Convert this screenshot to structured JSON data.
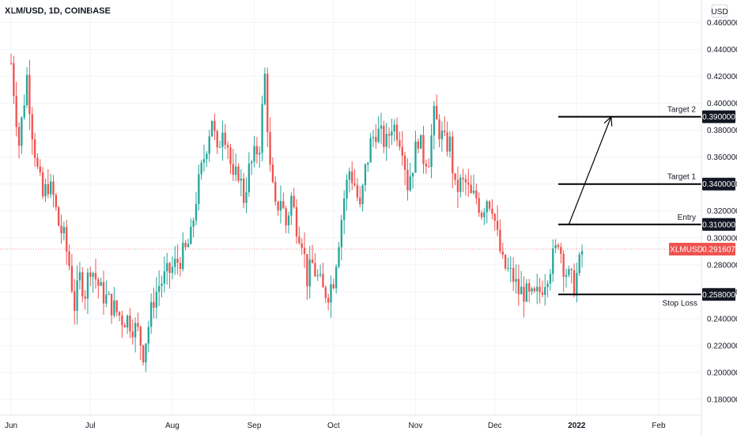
{
  "header": {
    "symbol_line": "XLM/USD, 1D, COINBASE"
  },
  "currency_badge": "USD",
  "colors": {
    "up": "#26a69a",
    "down": "#ef5350",
    "grid": "#f0f3fa",
    "text": "#131722",
    "level_line": "#000000",
    "last_price_bg": "#ef5350"
  },
  "chart_data": {
    "type": "candlestick",
    "title": "XLM/USD, 1D, COINBASE",
    "ylim": [
      0.17,
      0.465
    ],
    "y_ticks": [
      "0.460000",
      "0.440000",
      "0.420000",
      "0.400000",
      "0.380000",
      "0.360000",
      "0.340000",
      "0.320000",
      "0.300000",
      "0.280000",
      "0.260000",
      "0.240000",
      "0.220000",
      "0.200000",
      "0.180000"
    ],
    "x_ticks": [
      "Jun",
      "Jul",
      "Aug",
      "Sep",
      "Oct",
      "Nov",
      "Dec",
      "2022",
      "Feb"
    ],
    "x_range_days": [
      0,
      250
    ],
    "x_tick_days": [
      0,
      30,
      61,
      92,
      122,
      153,
      183,
      214,
      245
    ],
    "last_price": {
      "symbol": "XLMUSD",
      "value": "0.291607",
      "y": 0.291607
    },
    "levels": [
      {
        "name": "Target 2",
        "label": "0.390000",
        "y": 0.39
      },
      {
        "name": "Target 1",
        "label": "0.340000",
        "y": 0.34
      },
      {
        "name": "Entry",
        "label": "0.310000",
        "y": 0.31
      },
      {
        "name": "Stop Loss",
        "label": "0.258000",
        "y": 0.258
      }
    ],
    "level_x_start_day": 207,
    "arrow": {
      "from": {
        "day": 211,
        "y": 0.31
      },
      "to": {
        "day": 227,
        "y": 0.39
      }
    },
    "anchors": [
      [
        0,
        0.43
      ],
      [
        3,
        0.37
      ],
      [
        6,
        0.42
      ],
      [
        8,
        0.38
      ],
      [
        10,
        0.35
      ],
      [
        12,
        0.33
      ],
      [
        14,
        0.34
      ],
      [
        16,
        0.33
      ],
      [
        18,
        0.31
      ],
      [
        20,
        0.3
      ],
      [
        22,
        0.28
      ],
      [
        24,
        0.25
      ],
      [
        26,
        0.27
      ],
      [
        28,
        0.26
      ],
      [
        30,
        0.28
      ],
      [
        32,
        0.27
      ],
      [
        34,
        0.26
      ],
      [
        36,
        0.255
      ],
      [
        38,
        0.25
      ],
      [
        40,
        0.245
      ],
      [
        42,
        0.24
      ],
      [
        44,
        0.24
      ],
      [
        46,
        0.235
      ],
      [
        48,
        0.23
      ],
      [
        50,
        0.215
      ],
      [
        52,
        0.235
      ],
      [
        54,
        0.255
      ],
      [
        56,
        0.265
      ],
      [
        58,
        0.27
      ],
      [
        60,
        0.275
      ],
      [
        62,
        0.28
      ],
      [
        64,
        0.285
      ],
      [
        66,
        0.29
      ],
      [
        68,
        0.3
      ],
      [
        70,
        0.33
      ],
      [
        72,
        0.35
      ],
      [
        74,
        0.37
      ],
      [
        76,
        0.39
      ],
      [
        78,
        0.36
      ],
      [
        80,
        0.385
      ],
      [
        82,
        0.37
      ],
      [
        84,
        0.34
      ],
      [
        86,
        0.35
      ],
      [
        88,
        0.33
      ],
      [
        90,
        0.35
      ],
      [
        92,
        0.36
      ],
      [
        94,
        0.37
      ],
      [
        96,
        0.42
      ],
      [
        98,
        0.35
      ],
      [
        100,
        0.32
      ],
      [
        102,
        0.33
      ],
      [
        104,
        0.31
      ],
      [
        106,
        0.33
      ],
      [
        108,
        0.31
      ],
      [
        110,
        0.3
      ],
      [
        112,
        0.27
      ],
      [
        114,
        0.28
      ],
      [
        116,
        0.27
      ],
      [
        118,
        0.26
      ],
      [
        120,
        0.26
      ],
      [
        122,
        0.27
      ],
      [
        124,
        0.3
      ],
      [
        126,
        0.33
      ],
      [
        128,
        0.35
      ],
      [
        130,
        0.34
      ],
      [
        132,
        0.32
      ],
      [
        134,
        0.35
      ],
      [
        136,
        0.37
      ],
      [
        138,
        0.38
      ],
      [
        140,
        0.375
      ],
      [
        142,
        0.37
      ],
      [
        144,
        0.385
      ],
      [
        146,
        0.38
      ],
      [
        148,
        0.37
      ],
      [
        150,
        0.34
      ],
      [
        152,
        0.355
      ],
      [
        154,
        0.375
      ],
      [
        156,
        0.36
      ],
      [
        158,
        0.36
      ],
      [
        160,
        0.39
      ],
      [
        162,
        0.38
      ],
      [
        164,
        0.37
      ],
      [
        166,
        0.37
      ],
      [
        168,
        0.335
      ],
      [
        170,
        0.34
      ],
      [
        172,
        0.34
      ],
      [
        174,
        0.33
      ],
      [
        176,
        0.33
      ],
      [
        178,
        0.32
      ],
      [
        180,
        0.33
      ],
      [
        182,
        0.325
      ],
      [
        184,
        0.3
      ],
      [
        186,
        0.28
      ],
      [
        188,
        0.275
      ],
      [
        190,
        0.27
      ],
      [
        192,
        0.26
      ],
      [
        194,
        0.26
      ],
      [
        196,
        0.255
      ],
      [
        198,
        0.255
      ],
      [
        200,
        0.26
      ],
      [
        202,
        0.27
      ],
      [
        204,
        0.28
      ],
      [
        206,
        0.29
      ],
      [
        207,
        0.3
      ],
      [
        209,
        0.28
      ],
      [
        211,
        0.27
      ],
      [
        213,
        0.265
      ],
      [
        215,
        0.28
      ],
      [
        216,
        0.29
      ]
    ]
  }
}
